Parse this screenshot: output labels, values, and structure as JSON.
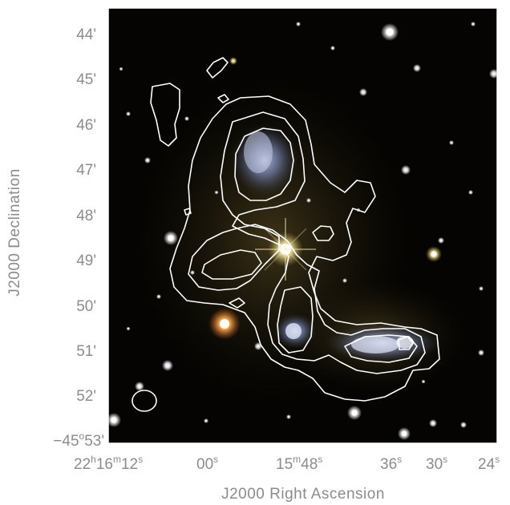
{
  "figure": {
    "x_axis_title": "J2000 Right Ascension",
    "y_axis_title": "J2000 Declination",
    "y_ticks": [
      "44'",
      "45'",
      "46'",
      "47'",
      "48'",
      "49'",
      "50'",
      "51'",
      "52'"
    ],
    "y_tick_last": {
      "prefix": "−45",
      "sup1": "o",
      "mid": "53",
      "sup2": "'"
    },
    "x_ticks": [
      {
        "parts": [
          "22",
          "h",
          "16",
          "m",
          "12",
          "s"
        ]
      },
      {
        "parts": [
          "00",
          "s"
        ]
      },
      {
        "parts": [
          "15",
          "m",
          "48",
          "s"
        ]
      },
      {
        "parts": [
          "36",
          "s"
        ]
      },
      {
        "parts": [
          "30",
          "s"
        ]
      },
      {
        "parts": [
          "24",
          "s"
        ]
      }
    ]
  },
  "image_content": "Optical colour image of galaxy group with white radio contours overlaid",
  "colors": {
    "background": "#000000",
    "contour": "#ffffff",
    "frame": "#ffffff",
    "label_text": "#8c8c8c"
  }
}
